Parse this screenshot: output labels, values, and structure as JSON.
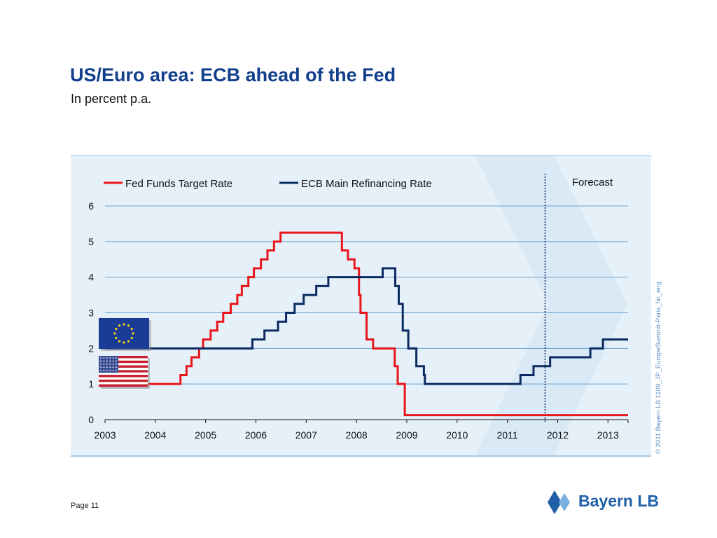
{
  "slide": {
    "title": "US/Euro area: ECB ahead of the Fed",
    "subtitle": "In percent p.a.",
    "page_label": "Page 11",
    "copyright": "© 2011 Bayern LB  1109_JP_EuropeSummit-Paris_fin_eng",
    "logo_text": "Bayern LB"
  },
  "chart_data": {
    "type": "line",
    "title": "",
    "xlabel": "",
    "ylabel": "",
    "xlim": [
      2003.0,
      2013.4
    ],
    "ylim": [
      0,
      6
    ],
    "yticks": [
      0,
      1,
      2,
      3,
      4,
      5,
      6
    ],
    "xticks": [
      2003,
      2004,
      2005,
      2006,
      2007,
      2008,
      2009,
      2010,
      2011,
      2012,
      2013
    ],
    "x_tick_labels": [
      "2003",
      "2004",
      "2005",
      "2006",
      "2007",
      "2008",
      "2009",
      "2010",
      "2011",
      "2012",
      "2013"
    ],
    "grid": true,
    "legend_position": "top",
    "annotation": {
      "label": "Forecast",
      "x": 2011.75
    },
    "series": [
      {
        "name": "Fed Funds Target Rate",
        "color": "#e8161b",
        "step": true,
        "points": [
          [
            2003.0,
            1.0
          ],
          [
            2004.5,
            1.25
          ],
          [
            2004.62,
            1.5
          ],
          [
            2004.72,
            1.75
          ],
          [
            2004.87,
            2.0
          ],
          [
            2004.95,
            2.25
          ],
          [
            2005.1,
            2.5
          ],
          [
            2005.23,
            2.75
          ],
          [
            2005.35,
            3.0
          ],
          [
            2005.5,
            3.25
          ],
          [
            2005.63,
            3.5
          ],
          [
            2005.72,
            3.75
          ],
          [
            2005.85,
            4.0
          ],
          [
            2005.96,
            4.25
          ],
          [
            2006.1,
            4.5
          ],
          [
            2006.23,
            4.75
          ],
          [
            2006.36,
            5.0
          ],
          [
            2006.49,
            5.25
          ],
          [
            2007.71,
            4.75
          ],
          [
            2007.83,
            4.5
          ],
          [
            2007.96,
            4.25
          ],
          [
            2008.05,
            3.5
          ],
          [
            2008.08,
            3.0
          ],
          [
            2008.2,
            2.25
          ],
          [
            2008.33,
            2.0
          ],
          [
            2008.76,
            1.5
          ],
          [
            2008.82,
            1.0
          ],
          [
            2008.96,
            0.125
          ],
          [
            2013.4,
            0.125
          ]
        ]
      },
      {
        "name": "ECB Main Refinancing Rate",
        "color": "#0b2a62",
        "step": true,
        "points": [
          [
            2003.0,
            2.0
          ],
          [
            2005.93,
            2.25
          ],
          [
            2006.17,
            2.5
          ],
          [
            2006.44,
            2.75
          ],
          [
            2006.6,
            3.0
          ],
          [
            2006.77,
            3.25
          ],
          [
            2006.95,
            3.5
          ],
          [
            2007.2,
            3.75
          ],
          [
            2007.44,
            4.0
          ],
          [
            2008.52,
            4.25
          ],
          [
            2008.77,
            3.75
          ],
          [
            2008.84,
            3.25
          ],
          [
            2008.92,
            2.5
          ],
          [
            2009.03,
            2.0
          ],
          [
            2009.19,
            1.5
          ],
          [
            2009.34,
            1.25
          ],
          [
            2009.36,
            1.0
          ],
          [
            2011.26,
            1.25
          ],
          [
            2011.52,
            1.5
          ],
          [
            2011.85,
            1.75
          ],
          [
            2012.65,
            2.0
          ],
          [
            2012.9,
            2.25
          ],
          [
            2013.4,
            2.25
          ]
        ]
      }
    ]
  }
}
